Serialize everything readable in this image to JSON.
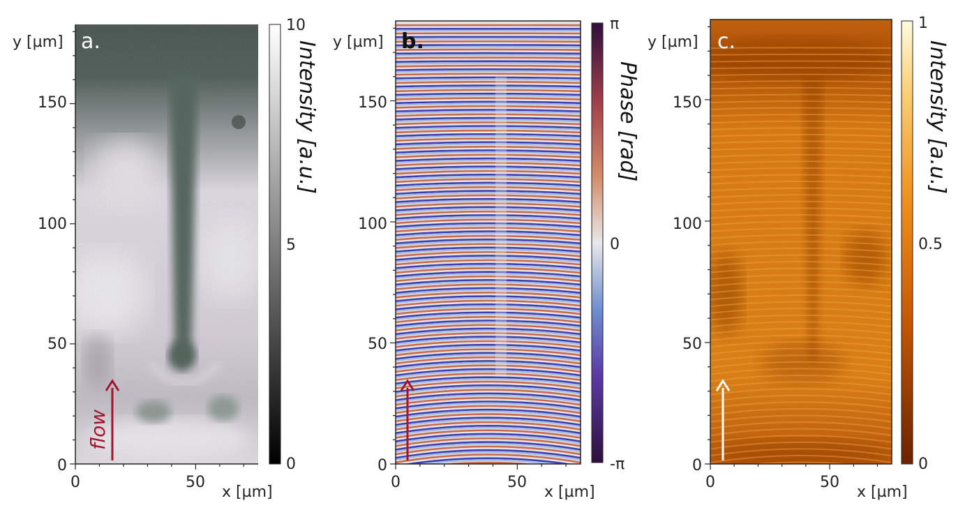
{
  "colors": {
    "flow_arrow": "#a3142a",
    "white_arrow": "#ffffff",
    "panel_letter_light": "#ffffff",
    "panel_letter_dark": "#111111",
    "gray_low": "#000000",
    "gray_high": "#ffffff",
    "phase_low": "#2f0f3d",
    "phase_mid_low": "#4a63c4",
    "phase_mid": "#e8e8ea",
    "phase_mid_high": "#c26a4a",
    "phase_high": "#2f0f3d",
    "orange_low": "#7a2a00",
    "orange_mid": "#f07810",
    "orange_high": "#fff8d0"
  },
  "chart_data": [
    {
      "type": "heatmap",
      "panel": "a.",
      "description_mode": "grayscale-green intensity image",
      "xlabel": "x [µm]",
      "ylabel": "y [µm]",
      "xlim": [
        0,
        76
      ],
      "ylim": [
        0,
        183
      ],
      "x_ticks": [
        0,
        50
      ],
      "y_ticks": [
        0,
        50,
        100,
        150
      ],
      "x_tick_labels": [
        "0",
        "50"
      ],
      "y_tick_labels": [
        "0",
        "50",
        "100",
        "150"
      ],
      "colorbar": {
        "label": "Intensity [a.u.]",
        "range": [
          0,
          10
        ],
        "tick_labels": [
          "0",
          "5",
          "10"
        ]
      },
      "annotation": {
        "text": "flow",
        "arrow_x": 15,
        "arrow_y_from": 2,
        "arrow_y_to": 35
      }
    },
    {
      "type": "heatmap",
      "panel": "b.",
      "description_mode": "wrapped phase fringes",
      "xlabel": "x [µm]",
      "ylabel": "y [µm]",
      "xlim": [
        0,
        76
      ],
      "ylim": [
        0,
        183
      ],
      "x_ticks": [
        0,
        50
      ],
      "y_ticks": [
        0,
        50,
        100,
        150
      ],
      "x_tick_labels": [
        "0",
        "50"
      ],
      "y_tick_labels": [
        "0",
        "50",
        "100",
        "150"
      ],
      "colorbar": {
        "label": "Phase [rad]",
        "range": [
          "-π",
          "π"
        ],
        "tick_labels": [
          "-π",
          "0",
          "π"
        ]
      },
      "annotation": {
        "text": "",
        "arrow_x": 5,
        "arrow_y_from": 2,
        "arrow_y_to": 35
      }
    },
    {
      "type": "heatmap",
      "panel": "c.",
      "description_mode": "orange intensity image",
      "xlabel": "x [µm]",
      "ylabel": "y [µm]",
      "xlim": [
        0,
        76
      ],
      "ylim": [
        0,
        183
      ],
      "x_ticks": [
        0,
        50
      ],
      "y_ticks": [
        0,
        50,
        100,
        150
      ],
      "x_tick_labels": [
        "0",
        "50"
      ],
      "y_tick_labels": [
        "0",
        "50",
        "100",
        "150"
      ],
      "colorbar": {
        "label": "Intensity [a.u.]",
        "range": [
          0,
          1
        ],
        "tick_labels": [
          "0",
          "0.5",
          "1"
        ]
      },
      "annotation": {
        "text": "",
        "arrow_x": 5,
        "arrow_y_from": 2,
        "arrow_y_to": 35
      }
    }
  ]
}
